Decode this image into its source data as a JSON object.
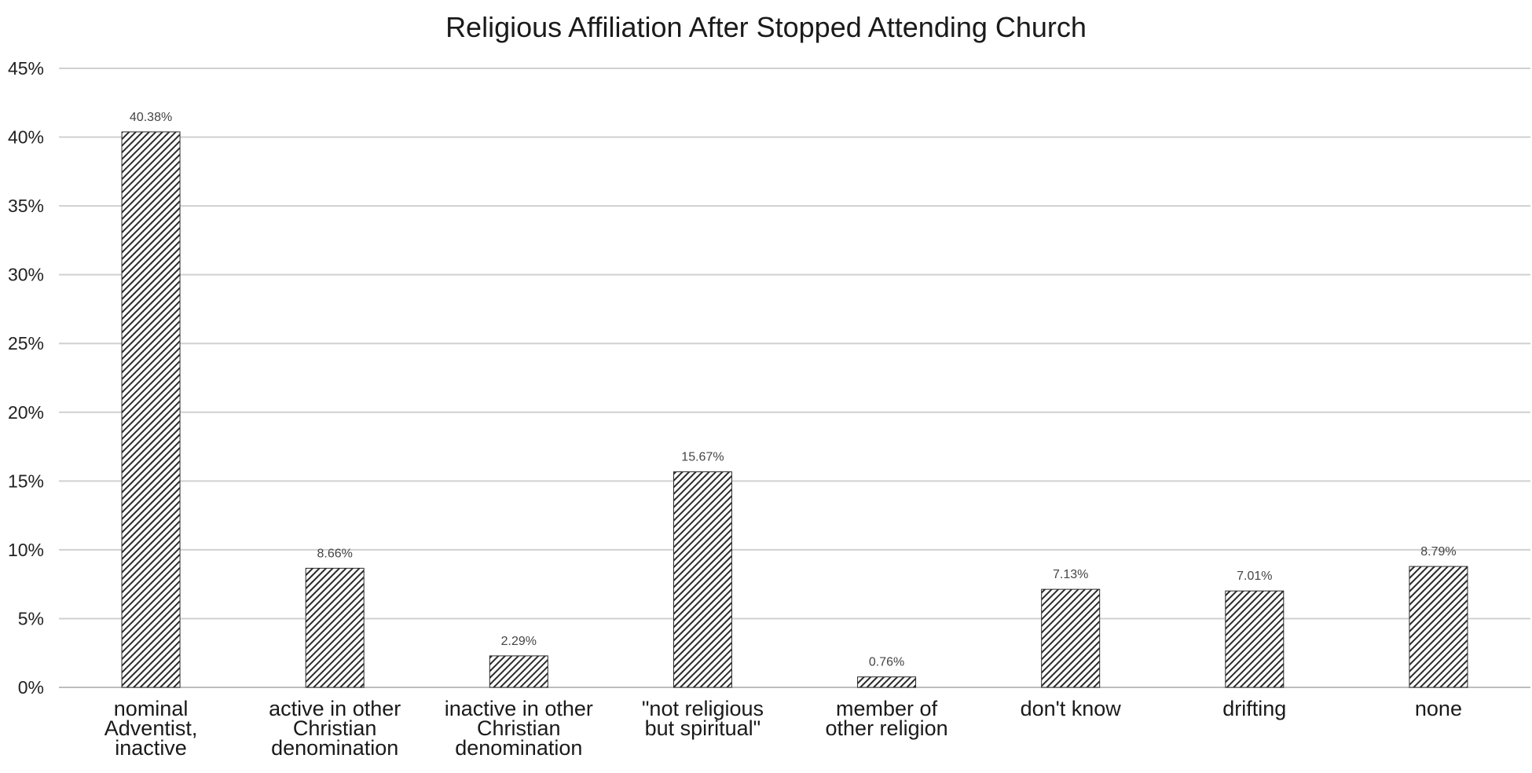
{
  "chart_data": {
    "type": "bar",
    "title": "Religious Affiliation After Stopped Attending Church",
    "xlabel": "",
    "ylabel": "",
    "ylim": [
      0,
      45
    ],
    "yticks": [
      "0%",
      "5%",
      "10%",
      "15%",
      "20%",
      "25%",
      "30%",
      "35%",
      "40%",
      "45%"
    ],
    "grid": true,
    "categories": [
      [
        "nominal",
        "Adventist,",
        "inactive"
      ],
      [
        "active in other",
        "Christian",
        "denomination"
      ],
      [
        "inactive in other",
        "Christian",
        "denomination"
      ],
      [
        "\"not religious",
        "but spiritual\""
      ],
      [
        "member of",
        "other religion"
      ],
      [
        "don't know"
      ],
      [
        "drifting"
      ],
      [
        "none"
      ]
    ],
    "values": [
      40.38,
      8.66,
      2.29,
      15.67,
      0.76,
      7.13,
      7.01,
      8.79
    ],
    "data_labels": [
      "40.38%",
      "8.66%",
      "2.29%",
      "15.67%",
      "0.76%",
      "7.13%",
      "7.01%",
      "8.79%"
    ],
    "bar_fill": "hatched",
    "colors": {
      "bar": "#2a2a2a",
      "grid": "#d0d0d0"
    }
  }
}
